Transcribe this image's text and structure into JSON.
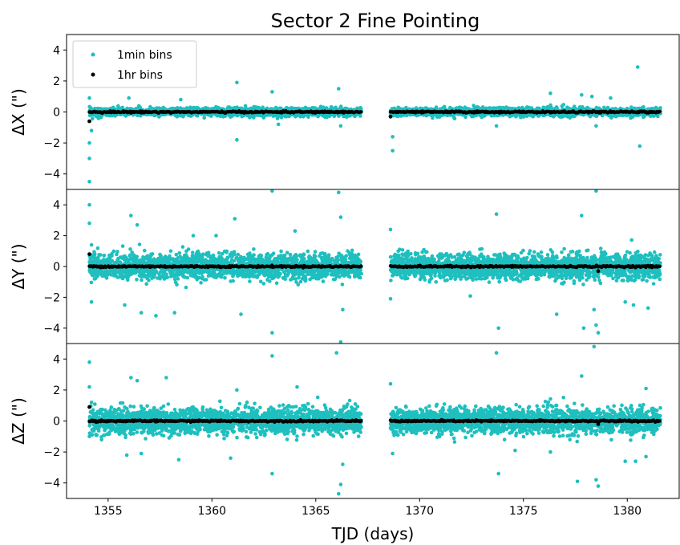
{
  "chart_data": {
    "type": "scatter",
    "title": "Sector 2 Fine Pointing",
    "xlabel": "TJD (days)",
    "xlim": [
      1353.0,
      1382.5
    ],
    "x_ticks": [
      1355,
      1360,
      1365,
      1370,
      1375,
      1380
    ],
    "x_tick_labels": [
      "1355",
      "1360",
      "1365",
      "1370",
      "1375",
      "1380"
    ],
    "segments": [
      [
        1354.1,
        1367.2
      ],
      [
        1368.6,
        1381.6
      ]
    ],
    "legend": {
      "placement": "top-left",
      "entries": [
        {
          "label": "1min bins",
          "color": "#17becf"
        },
        {
          "label": "1hr bins",
          "color": "#000000"
        }
      ]
    },
    "colors": {
      "min_bins": "#1fbfbf",
      "hr_bins": "#000000"
    },
    "panels": [
      {
        "ylabel": "ΔX (\")",
        "ylim": [
          -5,
          5
        ],
        "y_ticks": [
          -4,
          -2,
          0,
          2,
          4
        ],
        "y_tick_labels": [
          "−4",
          "−2",
          "0",
          "2",
          "4"
        ],
        "series": [
          {
            "name": "1min bins",
            "band": 0.25,
            "outliers": [
              [
                1354.1,
                -4.5
              ],
              [
                1354.1,
                -3.0
              ],
              [
                1354.1,
                -2.0
              ],
              [
                1354.2,
                -1.2
              ],
              [
                1354.1,
                0.9
              ],
              [
                1356.0,
                0.9
              ],
              [
                1358.5,
                0.8
              ],
              [
                1361.2,
                1.9
              ],
              [
                1361.2,
                -1.8
              ],
              [
                1362.9,
                1.3
              ],
              [
                1363.2,
                -0.8
              ],
              [
                1366.1,
                1.5
              ],
              [
                1366.2,
                -0.9
              ],
              [
                1368.7,
                -2.5
              ],
              [
                1368.7,
                -1.6
              ],
              [
                1373.7,
                -0.9
              ],
              [
                1376.3,
                1.2
              ],
              [
                1377.8,
                1.1
              ],
              [
                1378.3,
                1.0
              ],
              [
                1378.5,
                -0.9
              ],
              [
                1380.5,
                2.9
              ],
              [
                1380.6,
                -2.2
              ],
              [
                1379.2,
                0.9
              ]
            ]
          },
          {
            "name": "1hr bins",
            "level": 0.0,
            "outliers": [
              [
                1354.1,
                -0.6
              ],
              [
                1368.6,
                -0.3
              ]
            ]
          }
        ]
      },
      {
        "ylabel": "ΔY (\")",
        "ylim": [
          -5,
          5
        ],
        "y_ticks": [
          -4,
          -2,
          0,
          2,
          4
        ],
        "y_tick_labels": [
          "−4",
          "−2",
          "0",
          "2",
          "4"
        ],
        "series": [
          {
            "name": "1min bins",
            "band": 0.8,
            "outliers": [
              [
                1354.1,
                4.0
              ],
              [
                1354.1,
                2.8
              ],
              [
                1354.2,
                -2.3
              ],
              [
                1354.2,
                1.4
              ],
              [
                1355.8,
                -2.5
              ],
              [
                1356.1,
                3.3
              ],
              [
                1356.4,
                2.7
              ],
              [
                1356.6,
                -3.0
              ],
              [
                1357.3,
                -3.2
              ],
              [
                1358.2,
                -3.0
              ],
              [
                1359.1,
                2.0
              ],
              [
                1360.2,
                2.0
              ],
              [
                1361.1,
                3.1
              ],
              [
                1361.4,
                -3.1
              ],
              [
                1362.9,
                -4.3
              ],
              [
                1362.9,
                4.9
              ],
              [
                1364.0,
                2.3
              ],
              [
                1366.1,
                4.8
              ],
              [
                1366.2,
                -4.9
              ],
              [
                1366.2,
                3.2
              ],
              [
                1366.3,
                -2.8
              ],
              [
                1368.6,
                2.4
              ],
              [
                1368.6,
                -2.1
              ],
              [
                1373.7,
                3.4
              ],
              [
                1373.8,
                -4.0
              ],
              [
                1376.6,
                -3.1
              ],
              [
                1377.8,
                3.3
              ],
              [
                1377.9,
                -4.0
              ],
              [
                1378.4,
                -2.8
              ],
              [
                1378.5,
                4.9
              ],
              [
                1378.5,
                -3.8
              ],
              [
                1378.6,
                -4.3
              ],
              [
                1379.9,
                -2.3
              ],
              [
                1380.3,
                -2.5
              ],
              [
                1381.0,
                -2.7
              ]
            ]
          },
          {
            "name": "1hr bins",
            "level": 0.0,
            "outliers": [
              [
                1354.1,
                0.8
              ],
              [
                1378.6,
                -0.3
              ]
            ]
          }
        ]
      },
      {
        "ylabel": "ΔZ (\")",
        "ylim": [
          -5,
          5
        ],
        "y_ticks": [
          -4,
          -2,
          0,
          2,
          4
        ],
        "y_tick_labels": [
          "−4",
          "−2",
          "0",
          "2",
          "4"
        ],
        "series": [
          {
            "name": "1min bins",
            "band": 0.8,
            "outliers": [
              [
                1354.1,
                3.8
              ],
              [
                1354.1,
                2.2
              ],
              [
                1354.2,
                1.2
              ],
              [
                1355.9,
                -2.2
              ],
              [
                1356.1,
                2.8
              ],
              [
                1356.4,
                2.6
              ],
              [
                1356.6,
                -2.1
              ],
              [
                1357.8,
                2.8
              ],
              [
                1358.4,
                -2.5
              ],
              [
                1360.9,
                -2.4
              ],
              [
                1361.2,
                2.0
              ],
              [
                1362.9,
                -3.4
              ],
              [
                1362.9,
                4.2
              ],
              [
                1364.1,
                2.2
              ],
              [
                1366.0,
                4.4
              ],
              [
                1366.1,
                -4.7
              ],
              [
                1366.2,
                -4.1
              ],
              [
                1366.3,
                -2.8
              ],
              [
                1368.6,
                2.4
              ],
              [
                1368.7,
                -2.1
              ],
              [
                1373.7,
                4.4
              ],
              [
                1373.8,
                -3.4
              ],
              [
                1374.6,
                -1.9
              ],
              [
                1376.3,
                -2.0
              ],
              [
                1377.6,
                -3.9
              ],
              [
                1377.8,
                2.9
              ],
              [
                1378.4,
                4.8
              ],
              [
                1378.5,
                -3.8
              ],
              [
                1378.6,
                -4.2
              ],
              [
                1379.9,
                -2.6
              ],
              [
                1380.4,
                -2.6
              ],
              [
                1380.9,
                -2.3
              ],
              [
                1380.9,
                2.1
              ]
            ]
          },
          {
            "name": "1hr bins",
            "level": 0.0,
            "outliers": [
              [
                1354.1,
                0.9
              ],
              [
                1378.6,
                -0.2
              ]
            ]
          }
        ]
      }
    ]
  }
}
